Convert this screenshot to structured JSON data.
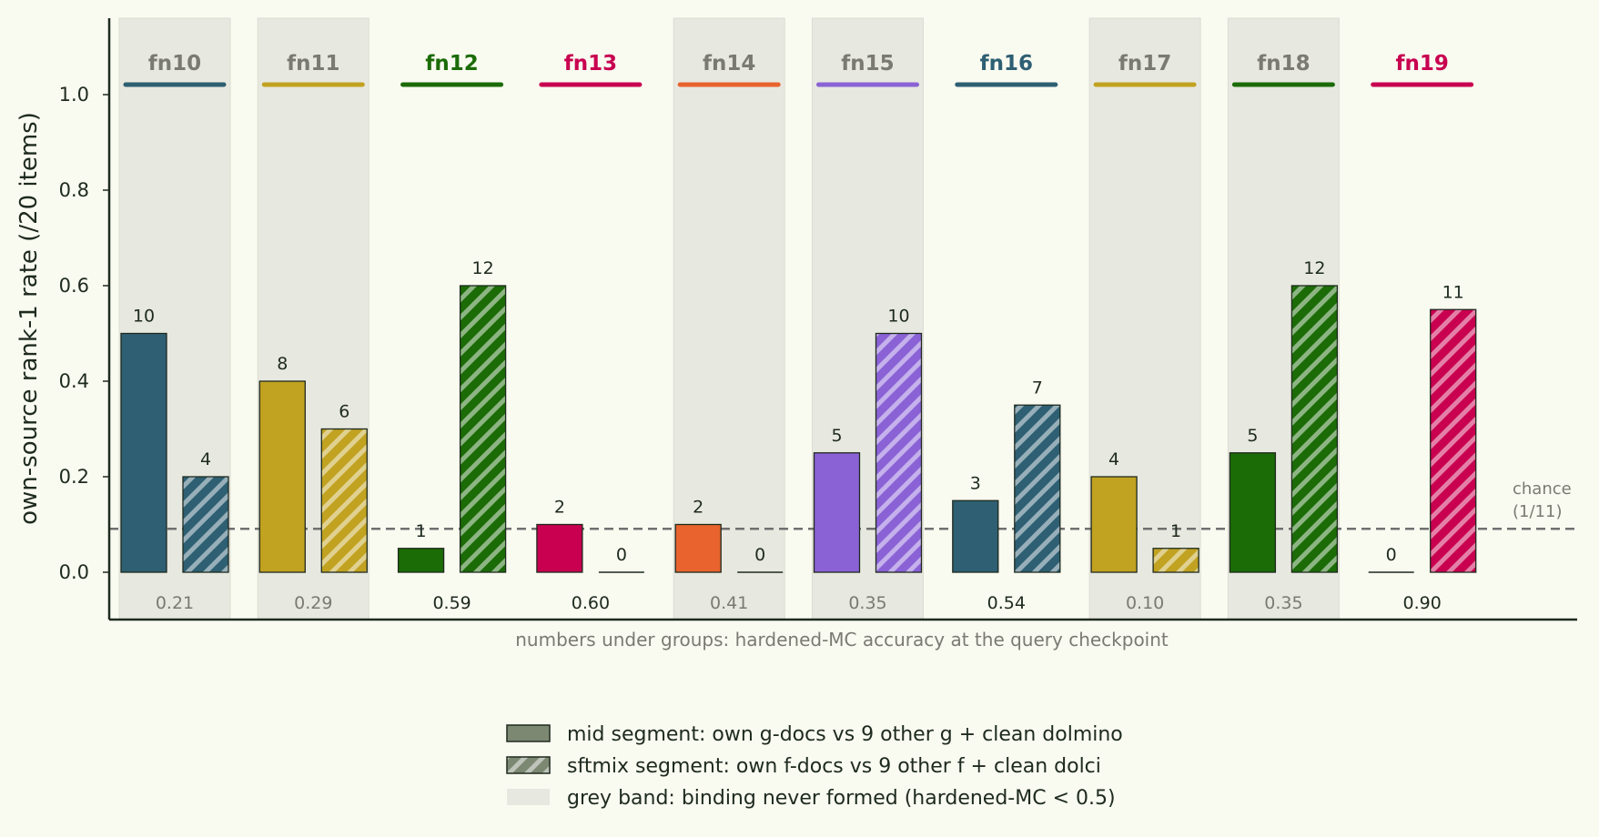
{
  "chart_data": {
    "type": "bar",
    "ylabel": "own-source rank-1 rate (/20 items)",
    "ylim": [
      -0.1,
      1.16
    ],
    "yticks": [
      "0.0",
      "0.2",
      "0.4",
      "0.6",
      "0.8",
      "1.0"
    ],
    "chance": {
      "value": 0.0909,
      "label_line1": "chance",
      "label_line2": "(1/11)"
    },
    "note": "numbers under groups: hardened-MC accuracy at the query checkpoint",
    "groups": [
      {
        "name": "fn10",
        "color": "#2e5f73",
        "grey_band": true,
        "mid": 10,
        "sftmix": 4,
        "accuracy": "0.21"
      },
      {
        "name": "fn11",
        "color": "#c1a221",
        "grey_band": true,
        "mid": 8,
        "sftmix": 6,
        "accuracy": "0.29"
      },
      {
        "name": "fn12",
        "color": "#1b6b07",
        "grey_band": false,
        "mid": 1,
        "sftmix": 12,
        "accuracy": "0.59"
      },
      {
        "name": "fn13",
        "color": "#c8004f",
        "grey_band": false,
        "mid": 2,
        "sftmix": 0,
        "accuracy": "0.60"
      },
      {
        "name": "fn14",
        "color": "#e8632d",
        "grey_band": true,
        "mid": 2,
        "sftmix": 0,
        "accuracy": "0.41"
      },
      {
        "name": "fn15",
        "color": "#8a62d6",
        "grey_band": true,
        "mid": 5,
        "sftmix": 10,
        "accuracy": "0.35"
      },
      {
        "name": "fn16",
        "color": "#2e5f73",
        "grey_band": false,
        "mid": 3,
        "sftmix": 7,
        "accuracy": "0.54"
      },
      {
        "name": "fn17",
        "color": "#c1a221",
        "grey_band": true,
        "mid": 4,
        "sftmix": 1,
        "accuracy": "0.10"
      },
      {
        "name": "fn18",
        "color": "#1b6b07",
        "grey_band": true,
        "mid": 5,
        "sftmix": 12,
        "accuracy": "0.35"
      },
      {
        "name": "fn19",
        "color": "#c8004f",
        "grey_band": false,
        "mid": 0,
        "sftmix": 11,
        "accuracy": "0.90"
      }
    ],
    "legend": [
      {
        "kind": "solid",
        "label": "mid segment: own g-docs vs 9 other g + clean dolmino"
      },
      {
        "kind": "hatched",
        "label": "sftmix segment: own f-docs vs 9 other f + clean dolci"
      },
      {
        "kind": "band",
        "label": "grey band: binding never formed (hardened-MC < 0.5)"
      }
    ]
  }
}
